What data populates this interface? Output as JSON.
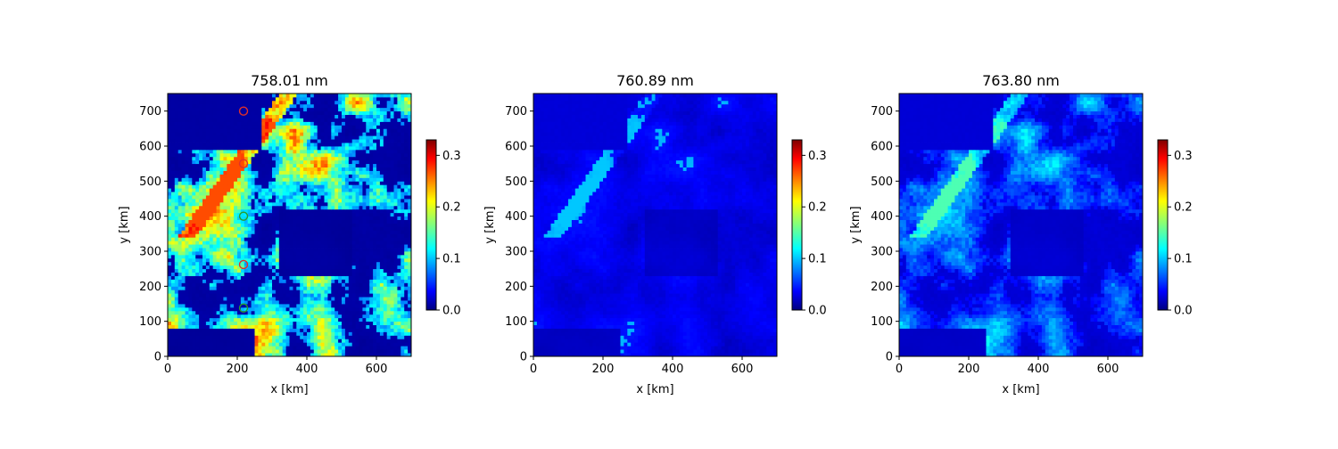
{
  "chart_data": [
    {
      "type": "heatmap",
      "title": "758.01 nm",
      "xlabel": "x [km]",
      "ylabel": "y [km]",
      "xlim": [
        0,
        700
      ],
      "ylim": [
        0,
        750
      ],
      "xticks": [
        "0",
        "200",
        "400",
        "600"
      ],
      "yticks": [
        "0",
        "100",
        "200",
        "300",
        "400",
        "500",
        "600",
        "700"
      ],
      "colorbar": {
        "range": [
          0.0,
          0.33
        ],
        "ticks": [
          "0.0",
          "0.1",
          "0.2",
          "0.3"
        ],
        "colormap": "jet"
      },
      "intensity": "high",
      "markers": [
        {
          "x": 218,
          "y": 700,
          "color": "#e0302a"
        },
        {
          "x": 218,
          "y": 550,
          "color": "#e0302a"
        },
        {
          "x": 218,
          "y": 400,
          "color": "#2a9b2a"
        },
        {
          "x": 218,
          "y": 262,
          "color": "#e0302a"
        },
        {
          "x": 218,
          "y": 138,
          "color": "#2a9b2a"
        }
      ]
    },
    {
      "type": "heatmap",
      "title": "760.89 nm",
      "xlabel": "x [km]",
      "ylabel": "y [km]",
      "xlim": [
        0,
        700
      ],
      "ylim": [
        0,
        750
      ],
      "xticks": [
        "0",
        "200",
        "400",
        "600"
      ],
      "yticks": [
        "0",
        "100",
        "200",
        "300",
        "400",
        "500",
        "600",
        "700"
      ],
      "colorbar": {
        "range": [
          0.0,
          0.33
        ],
        "ticks": [
          "0.0",
          "0.1",
          "0.2",
          "0.3"
        ],
        "colormap": "jet"
      },
      "intensity": "low",
      "markers": []
    },
    {
      "type": "heatmap",
      "title": "763.80 nm",
      "xlabel": "x [km]",
      "ylabel": "y [km]",
      "xlim": [
        0,
        700
      ],
      "ylim": [
        0,
        750
      ],
      "xticks": [
        "0",
        "200",
        "400",
        "600"
      ],
      "yticks": [
        "0",
        "100",
        "200",
        "300",
        "400",
        "500",
        "600",
        "700"
      ],
      "colorbar": {
        "range": [
          0.0,
          0.33
        ],
        "ticks": [
          "0.0",
          "0.1",
          "0.2",
          "0.3"
        ],
        "colormap": "jet"
      },
      "intensity": "medium",
      "markers": []
    }
  ]
}
